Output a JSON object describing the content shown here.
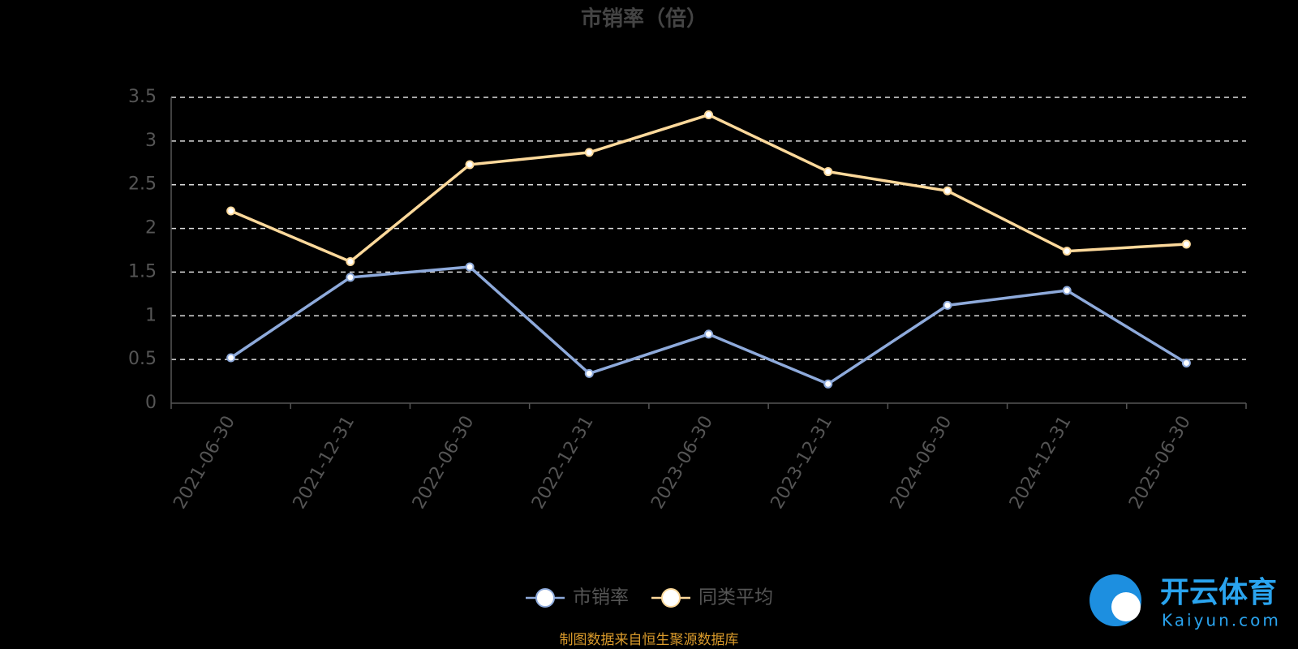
{
  "chart_data": {
    "type": "line",
    "title": "市销率（倍）",
    "categories": [
      "2021-06-30",
      "2021-12-31",
      "2022-06-30",
      "2022-12-31",
      "2023-06-30",
      "2023-12-31",
      "2024-06-30",
      "2024-12-31",
      "2025-06-30"
    ],
    "series": [
      {
        "name": "市销率",
        "color": "#8eaadb",
        "values": [
          0.52,
          1.44,
          1.56,
          0.34,
          0.79,
          0.22,
          1.12,
          1.29,
          0.46
        ]
      },
      {
        "name": "同类平均",
        "color": "#fdd99b",
        "values": [
          2.2,
          1.62,
          2.73,
          2.87,
          3.3,
          2.65,
          2.43,
          1.74,
          1.82
        ]
      }
    ],
    "ylim": [
      0,
      3.5
    ],
    "yticks": [
      0,
      0.5,
      1,
      1.5,
      2,
      2.5,
      3,
      3.5
    ],
    "grid": true,
    "legend": "bottom",
    "source": "制图数据来自恒生聚源数据库",
    "watermark": {
      "brand": "开云体育",
      "site": "Kaiyun.com"
    }
  }
}
